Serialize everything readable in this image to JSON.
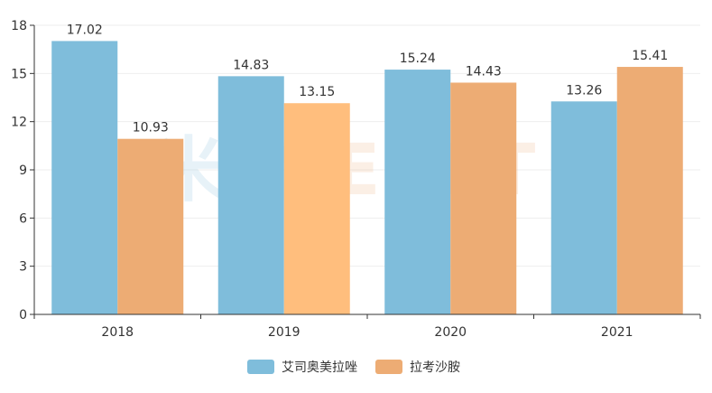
{
  "chart_data": {
    "type": "bar",
    "categories": [
      "2018",
      "2019",
      "2020",
      "2021"
    ],
    "series": [
      {
        "name": "艾司奥美拉唑",
        "values": [
          17.02,
          14.83,
          15.24,
          13.26
        ],
        "color": "#7fbddb"
      },
      {
        "name": "拉考沙胺",
        "values": [
          10.93,
          13.15,
          14.43,
          15.41
        ],
        "color": "#edac74",
        "highlight_color": "#ffbe7d",
        "highlight_index": 1
      }
    ],
    "ylim": [
      0,
      18
    ],
    "yticks": [
      0,
      3,
      6,
      9,
      12,
      15,
      18
    ],
    "grid": true,
    "legend_position": "bottom-center",
    "watermark": {
      "left_text": "米内",
      "right_text": "MENET"
    }
  }
}
